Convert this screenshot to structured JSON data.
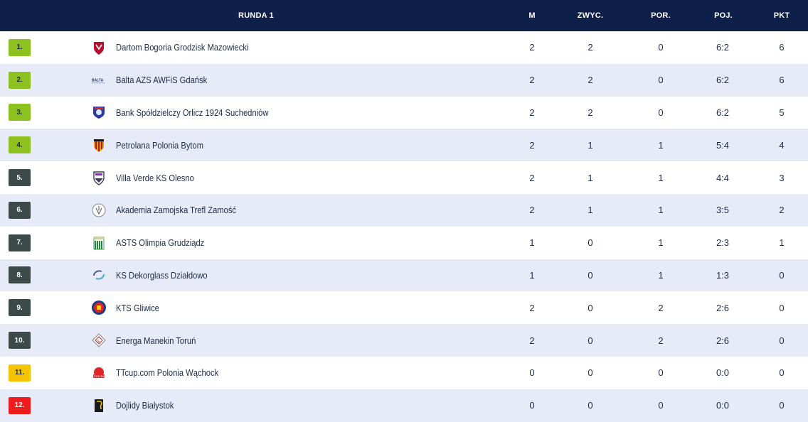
{
  "header": {
    "title": "RUNDA 1",
    "col_m": "M",
    "col_w": "ZWYC.",
    "col_l": "POR.",
    "col_s": "POJ.",
    "col_p": "PKT"
  },
  "colors": {
    "header_bg": "#0e1f4a",
    "promotion": "#8cc11f",
    "neutral": "#3c4a4a",
    "playoff_relegation": "#f5c400",
    "relegation": "#ee1c1c",
    "row_alt": "#e6ebf7"
  },
  "rows": [
    {
      "pos": "1.",
      "color": "promotion",
      "team": "Dartom Bogoria Grodzisk Mazowiecki",
      "logo": "bogoria-logo",
      "m": "2",
      "w": "2",
      "l": "0",
      "s": "6:2",
      "p": "6"
    },
    {
      "pos": "2.",
      "color": "promotion",
      "team": "Balta AZS AWFiS Gdańsk",
      "logo": "balta-logo",
      "m": "2",
      "w": "2",
      "l": "0",
      "s": "6:2",
      "p": "6"
    },
    {
      "pos": "3.",
      "color": "promotion",
      "team": "Bank Spółdzielczy Orlicz 1924 Suchedniów",
      "logo": "orlicz-logo",
      "m": "2",
      "w": "2",
      "l": "0",
      "s": "6:2",
      "p": "5"
    },
    {
      "pos": "4.",
      "color": "promotion",
      "team": "Petrolana Polonia Bytom",
      "logo": "polonia-bytom-logo",
      "m": "2",
      "w": "1",
      "l": "1",
      "s": "5:4",
      "p": "4"
    },
    {
      "pos": "5.",
      "color": "neutral",
      "team": "Villa Verde KS Olesno",
      "logo": "olesno-logo",
      "m": "2",
      "w": "1",
      "l": "1",
      "s": "4:4",
      "p": "3"
    },
    {
      "pos": "6.",
      "color": "neutral",
      "team": "Akademia Zamojska Trefl Zamość",
      "logo": "zamosc-logo",
      "m": "2",
      "w": "1",
      "l": "1",
      "s": "3:5",
      "p": "2"
    },
    {
      "pos": "7.",
      "color": "neutral",
      "team": "ASTS Olimpia Grudziądz",
      "logo": "olimpia-logo",
      "m": "1",
      "w": "0",
      "l": "1",
      "s": "2:3",
      "p": "1"
    },
    {
      "pos": "8.",
      "color": "neutral",
      "team": "KS Dekorglass Działdowo",
      "logo": "dekorglass-logo",
      "m": "1",
      "w": "0",
      "l": "1",
      "s": "1:3",
      "p": "0"
    },
    {
      "pos": "9.",
      "color": "neutral",
      "team": "KTS Gliwice",
      "logo": "gliwice-logo",
      "m": "2",
      "w": "0",
      "l": "2",
      "s": "2:6",
      "p": "0"
    },
    {
      "pos": "10.",
      "color": "neutral",
      "team": "Energa Manekin Toruń",
      "logo": "manekin-logo",
      "m": "2",
      "w": "0",
      "l": "2",
      "s": "2:6",
      "p": "0"
    },
    {
      "pos": "11.",
      "color": "playoff_relegation",
      "team": "TTcup.com Polonia Wąchock",
      "logo": "wachock-logo",
      "m": "0",
      "w": "0",
      "l": "0",
      "s": "0:0",
      "p": "0"
    },
    {
      "pos": "12.",
      "color": "relegation",
      "team": "Dojlidy Białystok",
      "logo": "dojlidy-logo",
      "m": "0",
      "w": "0",
      "l": "0",
      "s": "0:0",
      "p": "0"
    }
  ]
}
